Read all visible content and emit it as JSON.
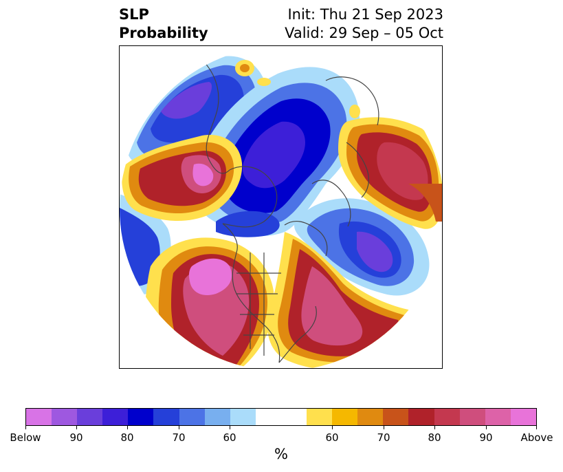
{
  "title": {
    "left_line1": "SLP",
    "left_line2": "Probability",
    "right_line1": "Init: Thu 21 Sep 2023",
    "right_line2": "Valid: 29 Sep – 05 Oct"
  },
  "colorbar": {
    "colors": [
      "#d873e6",
      "#9e58e0",
      "#6a3edb",
      "#3d1fd8",
      "#0000cc",
      "#2540d9",
      "#4c73e6",
      "#78afef",
      "#aadcfa",
      "#ffffff",
      "#ffe04d",
      "#f5b800",
      "#e08a10",
      "#c8531a",
      "#b0222a",
      "#c4384f",
      "#cf4e7d",
      "#dd62a8",
      "#e873d9"
    ],
    "tick_labels": [
      "Below",
      "90",
      "80",
      "70",
      "60",
      "60",
      "70",
      "80",
      "90",
      "Above"
    ],
    "unit": "%"
  },
  "map": {
    "projection": "north-polar-stereographic",
    "variable": "SLP probability",
    "features": [
      "coastlines",
      "country-borders",
      "us-state-borders"
    ]
  }
}
